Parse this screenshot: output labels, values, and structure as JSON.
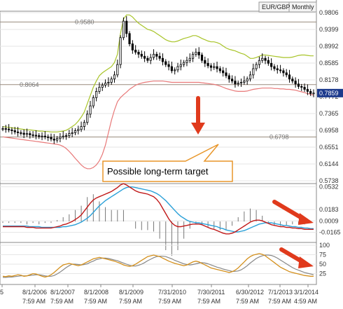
{
  "header": {
    "symbol": "EUR/GBP",
    "timeframe": "Monthly"
  },
  "annotation": "Possible long-term target",
  "colors": {
    "upper_band": "#a8c428",
    "lower_band": "#e87878",
    "macd": "#c01818",
    "signal": "#2aa0d8",
    "stoch_k": "#d4901c",
    "stoch_d": "#888888",
    "arrow": "#e03a1c",
    "price_marker": "#1c3a8c"
  },
  "icons": {
    "down_arrow": "arrow-down-icon",
    "diag_arrow": "arrow-diagonal-icon"
  },
  "chart_data": [
    {
      "type": "candlestick",
      "name": "price",
      "y_ticks": [
        "0.9806",
        "0.9399",
        "0.8992",
        "0.8585",
        "0.8178",
        "0.7772",
        "0.7365",
        "0.6958",
        "0.6551",
        "0.6144",
        "0.5738"
      ],
      "ylim": [
        0.5738,
        0.9806
      ],
      "levels": [
        {
          "value": 0.958,
          "label": "0.9580"
        },
        {
          "value": 0.8064,
          "label": "0.8064"
        },
        {
          "value": 0.6798,
          "label": "0.6798"
        }
      ],
      "last_price": "0.7859",
      "x_labels": [
        {
          "date": "5",
          "time": ""
        },
        {
          "date": "8/1/2006",
          "time": "7:59 AM"
        },
        {
          "date": "8/1/2007",
          "time": "7:59 AM"
        },
        {
          "date": "8/1/2008",
          "time": "7:59 AM"
        },
        {
          "date": "8/1/2009",
          "time": "7:59 AM"
        },
        {
          "date": "7/31/2010",
          "time": "7:59 AM"
        },
        {
          "date": "7/30/2011",
          "time": "7:59 AM"
        },
        {
          "date": "6/30/2012",
          "time": "7:59 AM"
        },
        {
          "date": "7/1/2013",
          "time": "7:59 AM"
        },
        {
          "date": "3/1/2014",
          "time": "4:59 AM"
        }
      ],
      "close": [
        0.7,
        0.699,
        0.697,
        0.695,
        0.692,
        0.69,
        0.689,
        0.686,
        0.688,
        0.685,
        0.684,
        0.683,
        0.681,
        0.682,
        0.68,
        0.679,
        0.675,
        0.672,
        0.676,
        0.68,
        0.682,
        0.683,
        0.688,
        0.69,
        0.695,
        0.698,
        0.705,
        0.715,
        0.735,
        0.755,
        0.775,
        0.79,
        0.8,
        0.805,
        0.81,
        0.812,
        0.82,
        0.83,
        0.855,
        0.92,
        0.96,
        0.93,
        0.905,
        0.89,
        0.885,
        0.88,
        0.875,
        0.87,
        0.865,
        0.872,
        0.88,
        0.875,
        0.87,
        0.862,
        0.855,
        0.85,
        0.84,
        0.842,
        0.85,
        0.855,
        0.86,
        0.865,
        0.87,
        0.88,
        0.885,
        0.878,
        0.865,
        0.858,
        0.852,
        0.848,
        0.85,
        0.845,
        0.84,
        0.835,
        0.828,
        0.82,
        0.815,
        0.808,
        0.81,
        0.812,
        0.815,
        0.82,
        0.83,
        0.845,
        0.855,
        0.865,
        0.87,
        0.865,
        0.858,
        0.85,
        0.845,
        0.842,
        0.84,
        0.835,
        0.83,
        0.82,
        0.815,
        0.808,
        0.802,
        0.8,
        0.795,
        0.79,
        0.785,
        0.786
      ],
      "upper_band": [
        0.705,
        0.704,
        0.703,
        0.702,
        0.701,
        0.7,
        0.699,
        0.698,
        0.697,
        0.697,
        0.696,
        0.695,
        0.694,
        0.694,
        0.693,
        0.693,
        0.692,
        0.692,
        0.692,
        0.693,
        0.694,
        0.696,
        0.7,
        0.705,
        0.71,
        0.718,
        0.728,
        0.74,
        0.76,
        0.78,
        0.8,
        0.815,
        0.828,
        0.835,
        0.84,
        0.845,
        0.85,
        0.86,
        0.88,
        0.93,
        0.965,
        0.975,
        0.975,
        0.97,
        0.962,
        0.955,
        0.95,
        0.945,
        0.94,
        0.938,
        0.935,
        0.93,
        0.925,
        0.92,
        0.915,
        0.912,
        0.91,
        0.91,
        0.912,
        0.915,
        0.918,
        0.92,
        0.922,
        0.925,
        0.925,
        0.922,
        0.918,
        0.915,
        0.912,
        0.91,
        0.91,
        0.908,
        0.905,
        0.9,
        0.895,
        0.892,
        0.89,
        0.888,
        0.885,
        0.882,
        0.88,
        0.875,
        0.87,
        0.87,
        0.872,
        0.875,
        0.878,
        0.878,
        0.877,
        0.876,
        0.875,
        0.874,
        0.873,
        0.872,
        0.872,
        0.872,
        0.873,
        0.875,
        0.877,
        0.878,
        0.878,
        0.877,
        0.876,
        0.876
      ],
      "lower_band": [
        0.68,
        0.679,
        0.678,
        0.677,
        0.676,
        0.675,
        0.674,
        0.673,
        0.672,
        0.671,
        0.67,
        0.669,
        0.668,
        0.667,
        0.666,
        0.665,
        0.664,
        0.663,
        0.662,
        0.66,
        0.657,
        0.652,
        0.645,
        0.637,
        0.628,
        0.62,
        0.612,
        0.606,
        0.603,
        0.603,
        0.606,
        0.612,
        0.622,
        0.638,
        0.66,
        0.69,
        0.72,
        0.745,
        0.765,
        0.775,
        0.782,
        0.788,
        0.795,
        0.8,
        0.805,
        0.808,
        0.81,
        0.812,
        0.813,
        0.814,
        0.815,
        0.815,
        0.815,
        0.815,
        0.814,
        0.813,
        0.812,
        0.812,
        0.812,
        0.812,
        0.812,
        0.812,
        0.812,
        0.812,
        0.812,
        0.812,
        0.811,
        0.81,
        0.809,
        0.808,
        0.807,
        0.805,
        0.803,
        0.8,
        0.797,
        0.795,
        0.793,
        0.791,
        0.79,
        0.79,
        0.79,
        0.791,
        0.793,
        0.795,
        0.796,
        0.797,
        0.798,
        0.798,
        0.798,
        0.798,
        0.797,
        0.797,
        0.796,
        0.796,
        0.795,
        0.795,
        0.794,
        0.793,
        0.791,
        0.789,
        0.787,
        0.785,
        0.783,
        0.781
      ]
    },
    {
      "type": "macd",
      "name": "macd",
      "y_ticks": [
        "0.0532",
        "0.0183",
        "0.0009",
        "-0.0165"
      ],
      "ylim": [
        -0.03,
        0.056
      ],
      "macd": [
        -0.008,
        -0.008,
        -0.008,
        -0.008,
        -0.008,
        -0.008,
        -0.008,
        -0.008,
        -0.009,
        -0.009,
        -0.009,
        -0.01,
        -0.01,
        -0.01,
        -0.01,
        -0.01,
        -0.01,
        -0.009,
        -0.008,
        -0.007,
        -0.005,
        -0.004,
        -0.002,
        0.0,
        0.003,
        0.006,
        0.01,
        0.016,
        0.022,
        0.028,
        0.033,
        0.036,
        0.038,
        0.04,
        0.042,
        0.044,
        0.046,
        0.049,
        0.052,
        0.056,
        0.058,
        0.056,
        0.053,
        0.05,
        0.047,
        0.045,
        0.044,
        0.043,
        0.042,
        0.04,
        0.038,
        0.034,
        0.028,
        0.02,
        0.012,
        0.004,
        -0.002,
        -0.006,
        -0.008,
        -0.008,
        -0.007,
        -0.006,
        -0.005,
        -0.004,
        -0.004,
        -0.004,
        -0.005,
        -0.007,
        -0.009,
        -0.011,
        -0.012,
        -0.014,
        -0.016,
        -0.018,
        -0.019,
        -0.019,
        -0.018,
        -0.016,
        -0.013,
        -0.01,
        -0.007,
        -0.004,
        -0.001,
        0.001,
        0.002,
        0.002,
        0.001,
        -0.001,
        -0.003,
        -0.005,
        -0.006,
        -0.007,
        -0.008,
        -0.008,
        -0.009,
        -0.009,
        -0.01,
        -0.01,
        -0.011,
        -0.011,
        -0.012,
        -0.012,
        -0.012,
        -0.012
      ],
      "signal": [
        -0.007,
        -0.007,
        -0.007,
        -0.007,
        -0.007,
        -0.007,
        -0.007,
        -0.007,
        -0.007,
        -0.008,
        -0.008,
        -0.008,
        -0.008,
        -0.009,
        -0.009,
        -0.009,
        -0.009,
        -0.009,
        -0.009,
        -0.009,
        -0.008,
        -0.008,
        -0.007,
        -0.006,
        -0.005,
        -0.003,
        -0.001,
        0.002,
        0.005,
        0.009,
        0.014,
        0.019,
        0.024,
        0.028,
        0.032,
        0.035,
        0.038,
        0.041,
        0.044,
        0.047,
        0.05,
        0.052,
        0.053,
        0.053,
        0.052,
        0.051,
        0.05,
        0.049,
        0.048,
        0.047,
        0.045,
        0.043,
        0.04,
        0.036,
        0.032,
        0.027,
        0.022,
        0.017,
        0.012,
        0.008,
        0.005,
        0.002,
        0.0,
        -0.001,
        -0.002,
        -0.002,
        -0.003,
        -0.004,
        -0.005,
        -0.006,
        -0.007,
        -0.008,
        -0.01,
        -0.011,
        -0.013,
        -0.014,
        -0.015,
        -0.016,
        -0.016,
        -0.015,
        -0.014,
        -0.012,
        -0.01,
        -0.008,
        -0.006,
        -0.004,
        -0.003,
        -0.002,
        -0.002,
        -0.002,
        -0.003,
        -0.004,
        -0.005,
        -0.006,
        -0.006,
        -0.007,
        -0.008,
        -0.008,
        -0.009,
        -0.009,
        -0.01,
        -0.01,
        -0.011,
        -0.011
      ]
    },
    {
      "type": "line",
      "name": "stochastic",
      "y_ticks": [
        "100",
        "75",
        "50",
        "25"
      ],
      "ylim": [
        0,
        100
      ],
      "k": [
        18,
        17,
        19,
        18,
        20,
        22,
        21,
        18,
        19,
        22,
        25,
        24,
        21,
        18,
        16,
        18,
        22,
        28,
        35,
        42,
        48,
        50,
        52,
        50,
        48,
        46,
        48,
        52,
        56,
        60,
        64,
        66,
        68,
        66,
        64,
        62,
        60,
        58,
        55,
        52,
        48,
        46,
        44,
        46,
        50,
        55,
        60,
        65,
        70,
        72,
        74,
        72,
        70,
        66,
        62,
        58,
        55,
        52,
        50,
        48,
        46,
        48,
        52,
        56,
        58,
        56,
        52,
        48,
        44,
        40,
        38,
        36,
        34,
        32,
        30,
        28,
        30,
        34,
        40,
        48,
        56,
        64,
        70,
        74,
        76,
        78,
        76,
        72,
        66,
        60,
        54,
        48,
        42,
        38,
        34,
        30,
        28,
        26,
        24,
        22,
        20,
        19,
        18,
        18
      ],
      "d": [
        15,
        15,
        16,
        16,
        17,
        18,
        19,
        19,
        19,
        20,
        21,
        22,
        22,
        21,
        19,
        18,
        18,
        20,
        24,
        29,
        35,
        41,
        46,
        50,
        50,
        49,
        48,
        49,
        51,
        55,
        58,
        62,
        64,
        66,
        66,
        65,
        63,
        61,
        59,
        56,
        53,
        50,
        47,
        45,
        45,
        47,
        50,
        54,
        59,
        63,
        67,
        70,
        71,
        71,
        70,
        67,
        64,
        60,
        57,
        54,
        51,
        49,
        48,
        49,
        51,
        53,
        54,
        53,
        51,
        48,
        45,
        42,
        40,
        37,
        35,
        33,
        31,
        31,
        32,
        35,
        40,
        46,
        53,
        59,
        65,
        69,
        72,
        74,
        74,
        73,
        70,
        66,
        61,
        56,
        51,
        46,
        41,
        37,
        34,
        31,
        28,
        26,
        24,
        22
      ]
    }
  ]
}
